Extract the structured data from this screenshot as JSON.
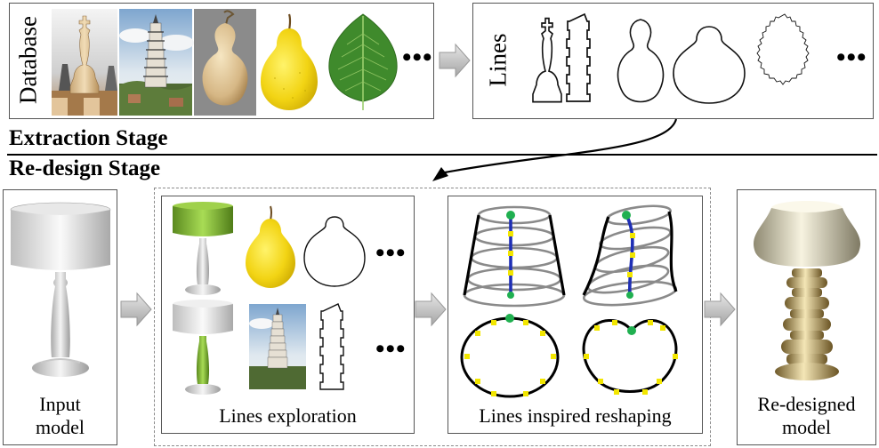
{
  "extraction": {
    "database_label": "Database",
    "lines_label": "Lines",
    "database_items": [
      "chess-piece",
      "pagoda",
      "gourd",
      "pear",
      "leaf"
    ],
    "ellipsis": "•••"
  },
  "stages": {
    "extraction_title": "Extraction Stage",
    "redesign_title": "Re-design Stage"
  },
  "redesign": {
    "input_caption_line1": "Input",
    "input_caption_line2": "model",
    "exploration_caption": "Lines exploration",
    "reshaping_caption": "Lines inspired reshaping",
    "output_caption_line1": "Re-designed",
    "output_caption_line2": "model",
    "ellipsis": "•••"
  },
  "colors": {
    "outline_green": "#20b050",
    "control_yellow": "#f2e600",
    "curve_blue": "#1f2fb5",
    "highlight_green": "#8cc63f"
  }
}
